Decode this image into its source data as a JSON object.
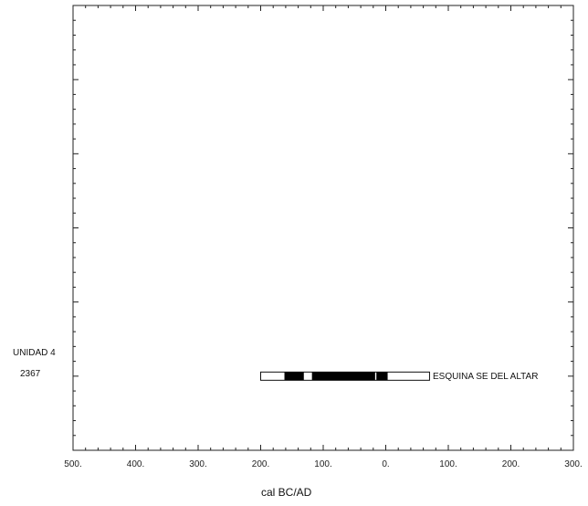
{
  "chart_data": {
    "type": "calibration-range-bar",
    "xlabel": "cal BC/AD",
    "x_ticks": [
      "500.",
      "400.",
      "300.",
      "200.",
      "100.",
      "0.",
      "100.",
      "200.",
      "300."
    ],
    "xlim_signed_year": [
      -500,
      300
    ],
    "y_minor_ticks": 30,
    "y_major_ticks": 5,
    "grid": false,
    "series": [
      {
        "group": "UNIDAD 4",
        "sample": "2367",
        "name": "ESQUINA SE DEL ALTAR",
        "outer_range_signed_year": [
          -200,
          70
        ],
        "solid_segments_signed_year": [
          [
            -162,
            -131
          ],
          [
            -118,
            -17
          ],
          [
            -15,
            3
          ]
        ]
      }
    ]
  }
}
